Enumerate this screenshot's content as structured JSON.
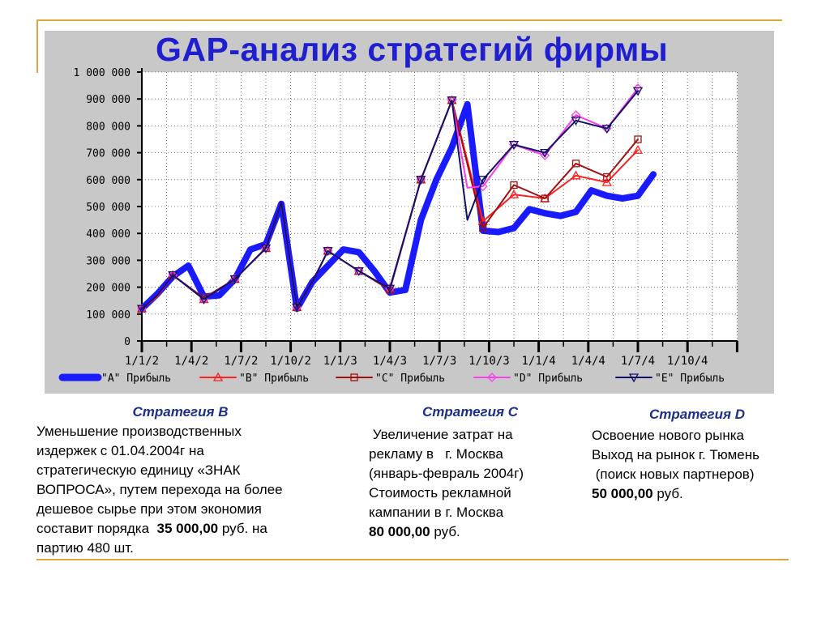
{
  "title": "GAP-анализ стратегий фирмы",
  "chart_data": {
    "type": "line",
    "x": [
      "1/1/2",
      "1/4/2",
      "1/7/2",
      "1/10/2",
      "1/1/3",
      "1/4/3",
      "1/7/3",
      "1/10/3",
      "1/1/4",
      "1/4/4",
      "1/7/4",
      "1/10/4"
    ],
    "ylim": [
      0,
      1000000
    ],
    "yticks": [
      0,
      100000,
      200000,
      300000,
      400000,
      500000,
      600000,
      700000,
      800000,
      900000,
      1000000
    ],
    "ytick_labels": [
      "0",
      "100 000",
      "200 000",
      "300 000",
      "400 000",
      "500 000",
      "600 000",
      "700 000",
      "800 000",
      "900 000",
      "1 000 000"
    ],
    "grid": true,
    "legend_position": "bottom",
    "series": [
      {
        "name": "\"A\" Прибыль",
        "color": "#1a1aff",
        "marker": "none",
        "points": [
          [
            0,
            120000
          ],
          [
            0.5,
            175000
          ],
          [
            1,
            240000
          ],
          [
            1.5,
            280000
          ],
          [
            2,
            165000
          ],
          [
            2.5,
            170000
          ],
          [
            3,
            230000
          ],
          [
            3.5,
            340000
          ],
          [
            4,
            360000
          ],
          [
            4.5,
            510000
          ],
          [
            5,
            120000
          ],
          [
            5.5,
            220000
          ],
          [
            6,
            280000
          ],
          [
            6.5,
            340000
          ],
          [
            7,
            330000
          ],
          [
            7.5,
            260000
          ],
          [
            8,
            180000
          ],
          [
            8.5,
            190000
          ],
          [
            9,
            450000
          ],
          [
            9.5,
            600000
          ],
          [
            10,
            720000
          ],
          [
            10.5,
            880000
          ],
          [
            11,
            410000
          ],
          [
            11.5,
            405000
          ],
          [
            12,
            420000
          ],
          [
            12.5,
            490000
          ],
          [
            13,
            475000
          ],
          [
            13.5,
            465000
          ],
          [
            14,
            480000
          ],
          [
            14.5,
            560000
          ],
          [
            15,
            540000
          ],
          [
            15.5,
            530000
          ],
          [
            16,
            540000
          ],
          [
            16.5,
            620000
          ]
        ]
      },
      {
        "name": "\"B\" Прибыль",
        "color": "#ff2020",
        "marker": "triangle-up",
        "points": [
          [
            0,
            120000
          ],
          [
            0.5,
            165000
          ],
          [
            1,
            245000
          ],
          [
            2,
            155000
          ],
          [
            3,
            230000
          ],
          [
            4,
            345000
          ],
          [
            4.5,
            515000
          ],
          [
            5,
            125000
          ],
          [
            5.5,
            220000
          ],
          [
            6,
            335000
          ],
          [
            7,
            260000
          ],
          [
            8,
            195000
          ],
          [
            9,
            600000
          ],
          [
            10,
            895000
          ],
          [
            11,
            445000
          ],
          [
            12,
            545000
          ],
          [
            13,
            530000
          ],
          [
            14,
            615000
          ],
          [
            15,
            590000
          ],
          [
            16,
            710000
          ]
        ]
      },
      {
        "name": "\"C\" Прибыль",
        "color": "#a01010",
        "marker": "square",
        "points": [
          [
            0,
            120000
          ],
          [
            0.5,
            170000
          ],
          [
            1,
            245000
          ],
          [
            2,
            160000
          ],
          [
            3,
            230000
          ],
          [
            4,
            345000
          ],
          [
            4.5,
            515000
          ],
          [
            5,
            125000
          ],
          [
            5.5,
            220000
          ],
          [
            6,
            335000
          ],
          [
            7,
            260000
          ],
          [
            8,
            190000
          ],
          [
            9,
            600000
          ],
          [
            10,
            895000
          ],
          [
            11,
            420000
          ],
          [
            12,
            580000
          ],
          [
            13,
            530000
          ],
          [
            14,
            660000
          ],
          [
            15,
            610000
          ],
          [
            16,
            750000
          ]
        ]
      },
      {
        "name": "\"D\" Прибыль",
        "color": "#ff3cf0",
        "marker": "diamond",
        "points": [
          [
            0,
            120000
          ],
          [
            0.5,
            170000
          ],
          [
            1,
            245000
          ],
          [
            2,
            155000
          ],
          [
            3,
            230000
          ],
          [
            4,
            345000
          ],
          [
            4.5,
            515000
          ],
          [
            5,
            125000
          ],
          [
            5.5,
            220000
          ],
          [
            6,
            335000
          ],
          [
            7,
            260000
          ],
          [
            8,
            195000
          ],
          [
            9,
            600000
          ],
          [
            10,
            895000
          ],
          [
            10.5,
            570000
          ],
          [
            11,
            575000
          ],
          [
            12,
            730000
          ],
          [
            13,
            690000
          ],
          [
            14,
            840000
          ],
          [
            15,
            790000
          ],
          [
            16,
            940000
          ]
        ]
      },
      {
        "name": "\"E\" Прибыль",
        "color": "#10106a",
        "marker": "triangle-down",
        "points": [
          [
            0,
            120000
          ],
          [
            0.5,
            170000
          ],
          [
            1,
            245000
          ],
          [
            2,
            155000
          ],
          [
            3,
            230000
          ],
          [
            4,
            345000
          ],
          [
            4.5,
            515000
          ],
          [
            5,
            125000
          ],
          [
            5.5,
            220000
          ],
          [
            6,
            335000
          ],
          [
            7,
            260000
          ],
          [
            8,
            195000
          ],
          [
            9,
            600000
          ],
          [
            10,
            895000
          ],
          [
            10.5,
            450000
          ],
          [
            11,
            600000
          ],
          [
            12,
            730000
          ],
          [
            13,
            700000
          ],
          [
            14,
            820000
          ],
          [
            15,
            790000
          ],
          [
            16,
            930000
          ]
        ]
      }
    ]
  },
  "strategies": [
    {
      "heading": "Стратегия В",
      "lines": [
        "Уменьшение производственных",
        "издержек с 01.04.2004г на",
        "стратегическую единицу «ЗНАК",
        "ВОПРОСА», путем перехода на более",
        "дешевое сырье при этом экономия"
      ],
      "amount_prefix": "составит порядка  ",
      "amount": "35 000,00",
      "amount_suffix": " руб. на",
      "tail": "партию 480 шт."
    },
    {
      "heading": "Стратегия С",
      "lines": [
        " Увеличение затрат на",
        "рекламу в   г. Москва",
        "(январь-февраль 2004г)",
        "Стоимость рекламной",
        "кампании в г. Москва"
      ],
      "amount_prefix": "",
      "amount": "80 000,00",
      "amount_suffix": " руб.",
      "tail": ""
    },
    {
      "heading": "Стратегия D",
      "lines": [
        "Освоение нового рынка",
        "Выход на рынок г. Тюмень",
        " (поиск новых партнеров)"
      ],
      "amount_prefix": "",
      "amount": "50 000,00",
      "amount_suffix": " руб.",
      "tail": ""
    }
  ]
}
